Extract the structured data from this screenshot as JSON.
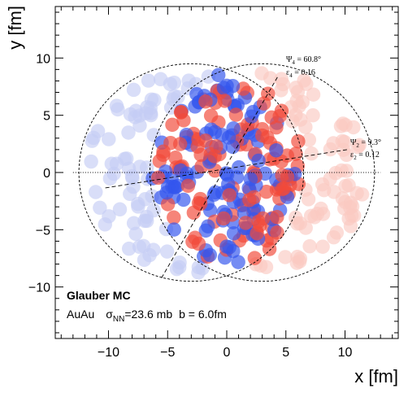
{
  "chart_data": {
    "type": "scatter",
    "title": "Glauber MC",
    "xlabel": "x [fm]",
    "ylabel": "y [fm]",
    "xlim": [
      -14.5,
      14.5
    ],
    "ylim": [
      -14.5,
      14.5
    ],
    "xticks": [
      -10,
      -5,
      0,
      5,
      10
    ],
    "yticks": [
      -10,
      -5,
      0,
      5,
      10
    ],
    "xtick_labels": [
      "−10",
      "−5",
      "0",
      "5",
      "10"
    ],
    "ytick_labels": [
      "−10",
      "−5",
      "0",
      "5",
      "10"
    ],
    "system": "AuAu",
    "sigma_symbol": "σ",
    "sigma_sub": "NN",
    "sigma_value": "=23.6 mb",
    "impact_parameter": "b = 6.0fm",
    "nucleus_radius": 9.5,
    "impact_b": 6.0,
    "nucleus_a": {
      "name": "projectile",
      "center_x": -3.0,
      "center_y": 0,
      "color_participant": "#3355ee",
      "color_spectator": "#c5cdf5"
    },
    "nucleus_b": {
      "name": "target",
      "center_x": 3.0,
      "center_y": 0,
      "color_participant": "#f24a3a",
      "color_spectator": "#fbc9c2"
    },
    "n_participants_per_nucleus": 120,
    "n_spectators_per_nucleus": 77,
    "plane_psi2": {
      "label_psi": "Ψ",
      "label_sub": "2",
      "label_value": " = 9.3°",
      "label_eps": "ε",
      "label_eps_sub": "2",
      "label_eps_value": " = 0.12",
      "angle_deg": 9.3,
      "center_x": -0.2,
      "center_y": 0.3
    },
    "plane_psi4": {
      "label_psi": "Ψ",
      "label_sub": "4",
      "label_value": " = 60.8°",
      "label_eps": "ε",
      "label_eps_sub": "4",
      "label_eps_value": " = 0.16",
      "angle_deg": 60.8,
      "center_x": -0.2,
      "center_y": 0.3
    },
    "reaction_plane": {
      "style": "dotted",
      "y": 0,
      "x_range": [
        -13,
        13
      ]
    }
  }
}
